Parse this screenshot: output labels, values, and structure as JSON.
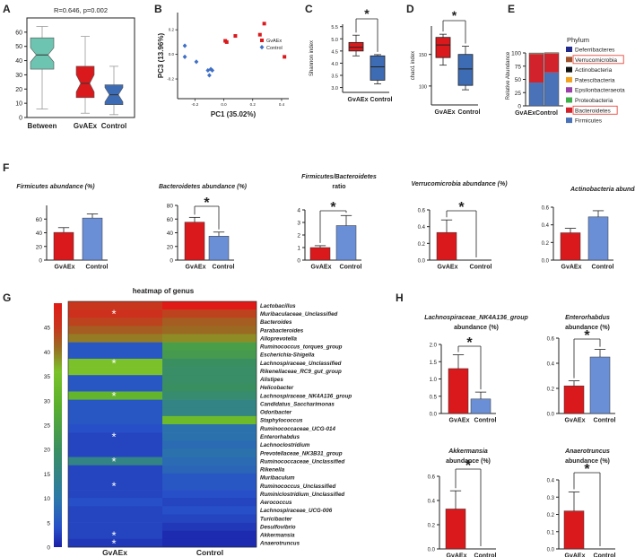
{
  "colors": {
    "between": "#6dc4b0",
    "gvaex": "#d9191c",
    "control": "#3d6cb4",
    "control_light": "#6b8fd6",
    "stat_red": "#e8483f",
    "blue_dot": "#3f6fc6"
  },
  "panel_labels": {
    "A": "A",
    "B": "B",
    "C": "C",
    "D": "D",
    "E": "E",
    "F": "F",
    "G": "G",
    "H": "H"
  },
  "chart_data": [
    {
      "id": "A",
      "type": "boxplot",
      "title": "R=0.646, p=0.002",
      "categories": [
        "Between",
        "GvAEx",
        "Control"
      ],
      "ylim": [
        0,
        70
      ],
      "yticks": [
        0,
        10,
        20,
        30,
        40,
        50,
        60
      ],
      "boxes": [
        {
          "min": 6,
          "q1": 34,
          "median": 44,
          "q3": 56,
          "max": 64,
          "notch": 5
        },
        {
          "min": 3,
          "q1": 14,
          "median": 24,
          "q3": 36,
          "max": 57,
          "notch": 6
        },
        {
          "min": 2,
          "q1": 9,
          "median": 16,
          "q3": 23,
          "max": 36,
          "notch": 5
        }
      ]
    },
    {
      "id": "B",
      "type": "scatter",
      "xlabel": "PC1 (35.02%)",
      "ylabel": "PC3 (13.96%)",
      "xlim": [
        -0.32,
        0.45
      ],
      "ylim": [
        -0.36,
        0.34
      ],
      "xticks": [
        -0.2,
        0.0,
        0.2,
        0.4
      ],
      "xticklabels": [
        "-0.2",
        "0.0",
        "0.2",
        "0.4"
      ],
      "yticks": [
        -0.2,
        0.0,
        0.2
      ],
      "yticklabels": [
        "-0.2",
        "0.0",
        "0.2"
      ],
      "legend": [
        "GvAEx",
        "Control"
      ],
      "series": [
        {
          "name": "GvAEx",
          "points": [
            [
              0.01,
              0.11
            ],
            [
              0.02,
              0.1
            ],
            [
              0.08,
              0.15
            ],
            [
              0.25,
              0.16
            ],
            [
              0.28,
              0.25
            ],
            [
              0.42,
              -0.02
            ]
          ]
        },
        {
          "name": "Control",
          "points": [
            [
              -0.27,
              0.07
            ],
            [
              -0.27,
              -0.02
            ],
            [
              -0.19,
              -0.06
            ],
            [
              -0.11,
              -0.13
            ],
            [
              -0.09,
              -0.12
            ],
            [
              -0.1,
              -0.17
            ],
            [
              -0.08,
              -0.13
            ]
          ]
        }
      ]
    },
    {
      "id": "C",
      "type": "boxplot",
      "ylabel": "Shannon index",
      "categories": [
        "GvAEx",
        "Control"
      ],
      "ylim": [
        2.8,
        5.6
      ],
      "yticks": [
        3.0,
        3.5,
        4.0,
        4.5,
        5.0,
        5.5
      ],
      "yticklabels": [
        "3.0",
        "3.5",
        "4.0",
        "4.5",
        "5.0",
        "5.5"
      ],
      "boxes": [
        {
          "min": 4.3,
          "q1": 4.5,
          "median": 4.65,
          "q3": 4.85,
          "max": 5.15
        },
        {
          "min": 3.15,
          "q1": 3.3,
          "median": 3.85,
          "q3": 4.3,
          "max": 4.35
        }
      ],
      "significance": "*"
    },
    {
      "id": "D",
      "type": "boxplot",
      "ylabel": "chao1 index",
      "categories": [
        "GvAEx",
        "Control"
      ],
      "ylim": [
        70,
        195
      ],
      "yticks": [
        100,
        150
      ],
      "yticklabels": [
        "100",
        "150"
      ],
      "boxes": [
        {
          "min": 133,
          "q1": 145,
          "median": 165,
          "q3": 177,
          "max": 182
        },
        {
          "min": 94,
          "q1": 101,
          "median": 127,
          "q3": 150,
          "max": 163
        }
      ],
      "significance": "*"
    },
    {
      "id": "E",
      "type": "stacked-bar",
      "ylabel": "Relative Abundance in Phylum Level",
      "categories": [
        "GvAEx",
        "Control"
      ],
      "ylim": [
        0,
        100
      ],
      "yticks": [
        0,
        25,
        50,
        75,
        100
      ],
      "legend_title": "Phylum",
      "series": [
        {
          "name": "Firmicutes",
          "color": "#4a72b8",
          "values": [
            44,
            63
          ]
        },
        {
          "name": "Bacteroidetes",
          "color": "#d2222b",
          "values": [
            54,
            36
          ]
        },
        {
          "name": "Proteobacteria",
          "color": "#3fae49",
          "values": [
            0.6,
            0.4
          ]
        },
        {
          "name": "Epsilonbacteraeota",
          "color": "#9b3fa8",
          "values": [
            0.2,
            0.2
          ]
        },
        {
          "name": "Patescibacteria",
          "color": "#f3a11f",
          "values": [
            0.2,
            0.2
          ]
        },
        {
          "name": "Actinobacteria",
          "color": "#111111",
          "values": [
            0.3,
            0.5
          ]
        },
        {
          "name": "Verrucomicrobia",
          "color": "#a0522d",
          "values": [
            0.35,
            0
          ]
        },
        {
          "name": "Deferribacteres",
          "color": "#222a8c",
          "values": [
            0.2,
            0.1
          ]
        }
      ],
      "legend_order": [
        "Deferribacteres",
        "Verrucomicrobia",
        "Actinobacteria",
        "Patescibacteria",
        "Epsilonbacteraeota",
        "Proteobacteria",
        "Bacteroidetes",
        "Firmicutes"
      ],
      "highlighted": [
        "Verrucomicrobia",
        "Bacteroidetes"
      ]
    },
    {
      "id": "F1",
      "type": "bar",
      "title": "Firmicutes abundance (%)",
      "categories": [
        "GvAEx",
        "Control"
      ],
      "ylim": [
        0,
        80
      ],
      "yticks": [
        0,
        20,
        40,
        60
      ],
      "values": [
        40.5,
        61.5
      ],
      "errors": [
        7,
        6
      ],
      "significance": ""
    },
    {
      "id": "F2",
      "type": "bar",
      "title": "Bacteroidetes abundance (%)",
      "categories": [
        "GvAEx",
        "Control"
      ],
      "ylim": [
        0,
        80
      ],
      "yticks": [
        0,
        20,
        40,
        60,
        80
      ],
      "values": [
        55.5,
        35
      ],
      "errors": [
        7,
        6
      ],
      "significance": "*"
    },
    {
      "id": "F3",
      "type": "bar",
      "title": "Firmicutes/Bacteroidetes",
      "title2": "ratio",
      "categories": [
        "GvAEx",
        "Control"
      ],
      "ylim": [
        0,
        4
      ],
      "yticks": [
        0,
        1,
        2,
        3,
        4
      ],
      "values": [
        1.0,
        2.75
      ],
      "errors": [
        0.15,
        0.8
      ],
      "significance": "*"
    },
    {
      "id": "F4",
      "type": "bar",
      "title": "Verrucomicrobia abundance (%)",
      "categories": [
        "GvAEx",
        "Control"
      ],
      "ylim": [
        0,
        0.6
      ],
      "yticks": [
        0.0,
        0.2,
        0.4,
        0.6
      ],
      "yticklabels": [
        "0.0",
        "0.2",
        "0.4",
        "0.6"
      ],
      "values": [
        0.33,
        0.0
      ],
      "errors": [
        0.15,
        0
      ],
      "significance": "*"
    },
    {
      "id": "F5",
      "type": "bar",
      "title": "Actinobacteria abundance (%)",
      "categories": [
        "GvAEx",
        "Control"
      ],
      "ylim": [
        0,
        0.6
      ],
      "yticks": [
        0.0,
        0.2,
        0.4,
        0.6
      ],
      "yticklabels": [
        "0.0",
        "0.2",
        "0.4",
        "0.6"
      ],
      "values": [
        0.31,
        0.49
      ],
      "errors": [
        0.05,
        0.07
      ],
      "significance": ""
    },
    {
      "id": "G",
      "type": "heatmap",
      "title": "heatmap of genus",
      "columns": [
        "GvAEx",
        "Control"
      ],
      "colorbar_ticks": [
        0,
        5,
        10,
        15,
        20,
        25,
        30,
        35,
        40,
        45
      ],
      "colorbar_max": 50,
      "rows": [
        "Lactobacillus",
        "Muribaculaceae_Unclassified",
        "Bacteroides",
        "Parabacteroides",
        "Alloprevotella",
        "Ruminococcus_torques_group",
        "Escherichia-Shigella",
        "Lachnospiraceae_Unclassified",
        "Rikenellaceae_RC9_gut_group",
        "Alistipes",
        "Helicobacter",
        "Lachnospiraceae_NK4A136_group",
        "Candidatus_Saccharimonas",
        "Odoribacter",
        "Staphylococcus",
        "Ruminococcaceae_UCG-014",
        "Enterorhabdus",
        "Lachnoclostridium",
        "Prevotellaceae_NK3B31_group",
        "Ruminococcaceae_Unclassified",
        "Rikenella",
        "Muribaculum",
        "Ruminococcus_Unclassified",
        "Ruminiclostridium_Unclassified",
        "Aerococcus",
        "Lachnospiraceae_UCG-006",
        "Turicibacter",
        "Desulfovibrio",
        "Akkermansia",
        "Anaerotruncus"
      ],
      "values": [
        [
          45,
          50
        ],
        [
          46,
          44
        ],
        [
          44,
          42
        ],
        [
          42,
          41
        ],
        [
          40,
          39
        ],
        [
          5,
          24
        ],
        [
          5,
          23
        ],
        [
          36,
          20
        ],
        [
          36,
          19
        ],
        [
          5,
          19
        ],
        [
          5,
          20
        ],
        [
          31,
          18
        ],
        [
          5,
          15
        ],
        [
          5,
          15
        ],
        [
          5,
          33
        ],
        [
          4,
          9
        ],
        [
          3,
          9
        ],
        [
          3,
          8
        ],
        [
          3,
          9
        ],
        [
          15,
          8
        ],
        [
          3,
          7
        ],
        [
          3,
          5
        ],
        [
          3,
          5
        ],
        [
          3,
          4
        ],
        [
          4,
          3
        ],
        [
          3,
          4
        ],
        [
          3,
          3
        ],
        [
          3,
          2
        ],
        [
          3,
          1
        ],
        [
          2,
          1
        ]
      ],
      "marked_rows": [
        "Muribaculaceae_Unclassified",
        "Lachnospiraceae_Unclassified",
        "Lachnospiraceae_NK4A136_group",
        "Enterorhabdus",
        "Ruminococcaceae_Unclassified",
        "Ruminococcus_Unclassified",
        "Akkermansia",
        "Anaerotruncus"
      ],
      "significance": "*"
    },
    {
      "id": "H1",
      "type": "bar",
      "title": "Lachnospiraceae_NK4A136_group",
      "title2": "abundance (%)",
      "categories": [
        "GvAEx",
        "Control"
      ],
      "ylim": [
        0,
        2.0
      ],
      "yticks": [
        0.0,
        0.5,
        1.0,
        1.5,
        2.0
      ],
      "yticklabels": [
        "0.0",
        "0.5",
        "1.0",
        "1.5",
        "2.0"
      ],
      "values": [
        1.3,
        0.42
      ],
      "errors": [
        0.4,
        0.2
      ],
      "significance": "*"
    },
    {
      "id": "H2",
      "type": "bar",
      "title": "Enterorhabdus",
      "title2": "abundance (%)",
      "categories": [
        "GvAEx",
        "Control"
      ],
      "ylim": [
        0,
        0.6
      ],
      "yticks": [
        0.0,
        0.2,
        0.4,
        0.6
      ],
      "yticklabels": [
        "0.0",
        "0.2",
        "0.4",
        "0.6"
      ],
      "values": [
        0.22,
        0.45
      ],
      "errors": [
        0.04,
        0.06
      ],
      "significance": "*"
    },
    {
      "id": "H3",
      "type": "bar",
      "title": "Akkermansia",
      "title2": "abundance (%)",
      "categories": [
        "GvAEx",
        "Control"
      ],
      "ylim": [
        0,
        0.6
      ],
      "yticks": [
        0.0,
        0.2,
        0.4,
        0.6
      ],
      "yticklabels": [
        "0.0",
        "0.2",
        "0.4",
        "0.6"
      ],
      "values": [
        0.33,
        0.0
      ],
      "errors": [
        0.15,
        0
      ],
      "significance": "*"
    },
    {
      "id": "H4",
      "type": "bar",
      "title": "Anaerotruncus",
      "title2": "abundance (%)",
      "categories": [
        "GvAEx",
        "Control"
      ],
      "ylim": [
        0,
        0.4
      ],
      "yticks": [
        0.0,
        0.1,
        0.2,
        0.3,
        0.4
      ],
      "yticklabels": [
        "0.0",
        "0.1",
        "0.2",
        "0.3",
        "0.4"
      ],
      "values": [
        0.22,
        0.0
      ],
      "errors": [
        0.11,
        0
      ],
      "significance": "*"
    }
  ]
}
